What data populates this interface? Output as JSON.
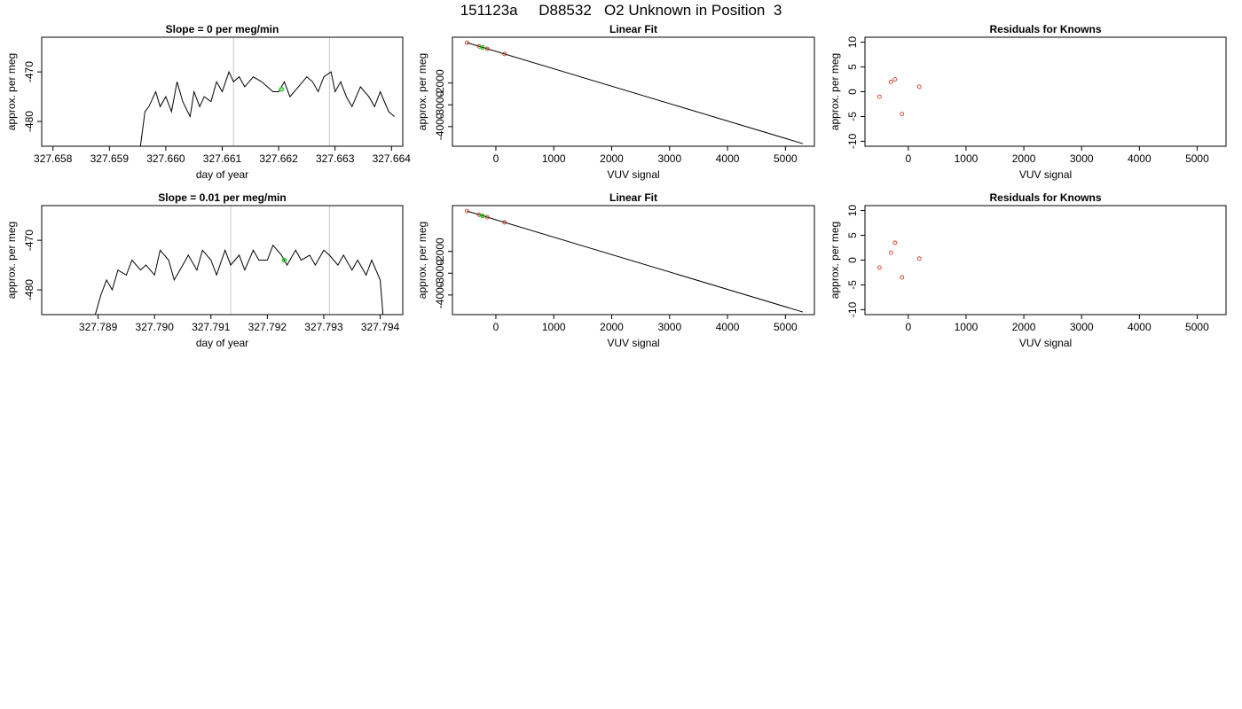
{
  "page_title": "151123a     D88532   O2 Unknown in Position  3",
  "colors": {
    "line": "#000000",
    "ref_line": "#c8c8c8",
    "known_point": "#cc2200",
    "unknown_point": "#22cc22"
  },
  "chart_data": [
    {
      "type": "line",
      "title": "Slope =  0  per meg/min",
      "xlabel": "day of year",
      "ylabel": "approx. per meg",
      "xlim": [
        327.6578,
        327.6642
      ],
      "ylim": [
        -485,
        -463
      ],
      "xticks": [
        "327.658",
        "327.659",
        "327.660",
        "327.661",
        "327.662",
        "327.663",
        "327.664"
      ],
      "yticks": [
        "-480",
        "-470"
      ],
      "ref_lines_x": [
        327.6612,
        327.6629
      ],
      "x": [
        327.65955,
        327.65963,
        327.6597,
        327.65982,
        327.6599,
        327.66,
        327.6601,
        327.6602,
        327.6603,
        327.66043,
        327.6605,
        327.6606,
        327.66068,
        327.6608,
        327.6609,
        327.661,
        327.66112,
        327.6612,
        327.6613,
        327.6614,
        327.66155,
        327.6617,
        327.6618,
        327.6619,
        327.662,
        327.6621,
        327.6622,
        327.66235,
        327.6625,
        327.6626,
        327.6627,
        327.6628,
        327.66293,
        327.663,
        327.6631,
        327.6632,
        327.6633,
        327.66345,
        327.6636,
        327.6637,
        327.6638,
        327.66395,
        327.66405
      ],
      "y": [
        -485,
        -478,
        -477,
        -474,
        -477,
        -475,
        -478,
        -472,
        -476,
        -479,
        -474,
        -477,
        -475,
        -476,
        -472,
        -474,
        -470,
        -472,
        -471,
        -473,
        -471,
        -472,
        -473,
        -474,
        -474,
        -472,
        -475,
        -473,
        -471,
        -472,
        -474,
        -471,
        -470,
        -474,
        -472,
        -475,
        -477,
        -473,
        -475,
        -477,
        -474,
        -478,
        -479
      ],
      "marker": {
        "x": 327.66205,
        "y": -473.5
      }
    },
    {
      "type": "scatter",
      "title": "Linear Fit",
      "xlabel": "VUV signal",
      "ylabel": "approx. per meg",
      "xlim": [
        -750,
        5500
      ],
      "ylim": [
        -4900,
        100
      ],
      "xticks": [
        "0",
        "1000",
        "2000",
        "3000",
        "4000",
        "5000"
      ],
      "yticks": [
        "-4000",
        "-3000",
        "-2000"
      ],
      "fit_line": [
        [
          -500,
          -150
        ],
        [
          5300,
          -4780
        ]
      ],
      "known_points": [
        [
          -500,
          -150
        ],
        [
          -290,
          -320
        ],
        [
          -150,
          -430
        ],
        [
          150,
          -670
        ]
      ],
      "unknown_points": [
        [
          -230,
          -370
        ]
      ]
    },
    {
      "type": "scatter",
      "title": "Residuals for Knowns",
      "xlabel": "VUV signal",
      "ylabel": "approx. per meg",
      "xlim": [
        -750,
        5500
      ],
      "ylim": [
        -11,
        11
      ],
      "xticks": [
        "0",
        "1000",
        "2000",
        "3000",
        "4000",
        "5000"
      ],
      "yticks": [
        "-10",
        "-5",
        "0",
        "5",
        "10"
      ],
      "known_points": [
        [
          -500,
          -1
        ],
        [
          -300,
          2
        ],
        [
          -230,
          2.5
        ],
        [
          -110,
          -4.5
        ],
        [
          190,
          1
        ]
      ]
    },
    {
      "type": "line",
      "title": "Slope =  0.01  per meg/min",
      "xlabel": "day of year",
      "ylabel": "approx. per meg",
      "xlim": [
        327.788,
        327.7944
      ],
      "ylim": [
        -485,
        -463
      ],
      "xticks": [
        "327.789",
        "327.790",
        "327.791",
        "327.792",
        "327.793",
        "327.794"
      ],
      "yticks": [
        "-480",
        "-470"
      ],
      "ref_lines_x": [
        327.79135,
        327.7931
      ],
      "x": [
        327.78895,
        327.78905,
        327.78915,
        327.78925,
        327.78935,
        327.7895,
        327.7896,
        327.78975,
        327.78985,
        327.79,
        327.7901,
        327.79025,
        327.79035,
        327.7905,
        327.7906,
        327.79075,
        327.79085,
        327.791,
        327.7911,
        327.79125,
        327.79135,
        327.7915,
        327.7916,
        327.79175,
        327.79185,
        327.792,
        327.7921,
        327.79225,
        327.79235,
        327.7925,
        327.7926,
        327.79275,
        327.79285,
        327.793,
        327.7931,
        327.79325,
        327.79335,
        327.7935,
        327.7936,
        327.79375,
        327.79385,
        327.794,
        327.79405
      ],
      "y": [
        -485,
        -481,
        -478,
        -480,
        -476,
        -477,
        -474,
        -476,
        -475,
        -477,
        -472,
        -474,
        -478,
        -475,
        -473,
        -476,
        -472,
        -474,
        -477,
        -472,
        -475,
        -473,
        -476,
        -472,
        -474,
        -474,
        -471,
        -473,
        -475,
        -472,
        -474,
        -473,
        -475,
        -472,
        -473,
        -475,
        -473,
        -476,
        -474,
        -477,
        -474,
        -478,
        -485
      ],
      "marker": {
        "x": 327.7923,
        "y": -474
      }
    },
    {
      "type": "scatter",
      "title": "Linear Fit",
      "xlabel": "VUV signal",
      "ylabel": "approx. per meg",
      "xlim": [
        -750,
        5500
      ],
      "ylim": [
        -4900,
        100
      ],
      "xticks": [
        "0",
        "1000",
        "2000",
        "3000",
        "4000",
        "5000"
      ],
      "yticks": [
        "-4000",
        "-3000",
        "-2000"
      ],
      "fit_line": [
        [
          -500,
          -150
        ],
        [
          5300,
          -4780
        ]
      ],
      "known_points": [
        [
          -500,
          -150
        ],
        [
          -290,
          -320
        ],
        [
          -150,
          -430
        ],
        [
          150,
          -670
        ]
      ],
      "unknown_points": [
        [
          -230,
          -370
        ]
      ]
    },
    {
      "type": "scatter",
      "title": "Residuals for Knowns",
      "xlabel": "VUV signal",
      "ylabel": "approx. per meg",
      "xlim": [
        -750,
        5500
      ],
      "ylim": [
        -11,
        11
      ],
      "xticks": [
        "0",
        "1000",
        "2000",
        "3000",
        "4000",
        "5000"
      ],
      "yticks": [
        "-10",
        "-5",
        "0",
        "5",
        "10"
      ],
      "known_points": [
        [
          -500,
          -1.5
        ],
        [
          -300,
          1.5
        ],
        [
          -230,
          3.5
        ],
        [
          -110,
          -3.5
        ],
        [
          190,
          0.3
        ]
      ]
    }
  ]
}
